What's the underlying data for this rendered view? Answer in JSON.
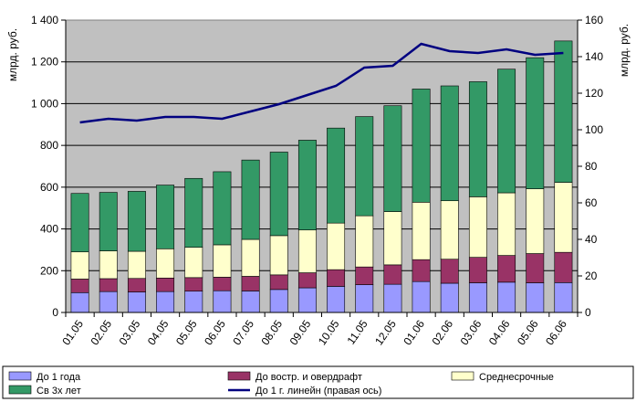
{
  "chart_data": {
    "type": "bar",
    "stacked": true,
    "categories": [
      "01.05",
      "02.05",
      "03.05",
      "04.05",
      "05.05",
      "06.05",
      "07.05",
      "08.05",
      "09.05",
      "10.05",
      "11.05",
      "12.05",
      "01.06",
      "02.06",
      "03.06",
      "04.06",
      "05.06",
      "06.06"
    ],
    "ylabel": "млрд. руб.",
    "y2label": "млрд. руб.",
    "ylim": [
      0,
      1400
    ],
    "y2lim": [
      0,
      160
    ],
    "yticks": [
      0,
      200,
      400,
      600,
      800,
      1000,
      1200,
      1400
    ],
    "ytick_labels": [
      "0",
      "200",
      "400",
      "600",
      "800",
      "1 000",
      "1 200",
      "1 400"
    ],
    "y2ticks": [
      0,
      20,
      40,
      60,
      80,
      100,
      120,
      140,
      160
    ],
    "y2tick_labels": [
      "0",
      "20",
      "40",
      "60",
      "80",
      "100",
      "120",
      "140",
      "160"
    ],
    "grid": true,
    "legend_position": "bottom",
    "series": [
      {
        "name": "До 1 года",
        "kind": "bar",
        "color": "#9999ff",
        "values": [
          95,
          100,
          98,
          100,
          102,
          104,
          103,
          110,
          118,
          125,
          133,
          135,
          148,
          140,
          142,
          145,
          142,
          143
        ]
      },
      {
        "name": "До востр. и овердрафт",
        "kind": "bar",
        "color": "#993366",
        "values": [
          65,
          62,
          65,
          65,
          65,
          65,
          70,
          70,
          72,
          80,
          85,
          93,
          105,
          115,
          122,
          128,
          140,
          145
        ]
      },
      {
        "name": "Среднесрочные",
        "kind": "bar",
        "color": "#ffffcc",
        "values": [
          130,
          133,
          130,
          140,
          145,
          155,
          177,
          188,
          205,
          223,
          245,
          255,
          275,
          280,
          290,
          300,
          310,
          335
        ]
      },
      {
        "name": "Св 3х лет",
        "kind": "bar",
        "color": "#339966",
        "values": [
          280,
          280,
          287,
          305,
          330,
          350,
          380,
          400,
          430,
          455,
          475,
          507,
          542,
          550,
          551,
          592,
          628,
          677
        ]
      },
      {
        "name": "До 1 г. линейн (правая ось)",
        "kind": "line",
        "axis": "right",
        "color": "#000080",
        "values": [
          104,
          106,
          105,
          107,
          107,
          106,
          110,
          114,
          119,
          124,
          134,
          135,
          147,
          143,
          142,
          144,
          141,
          142
        ]
      }
    ]
  }
}
